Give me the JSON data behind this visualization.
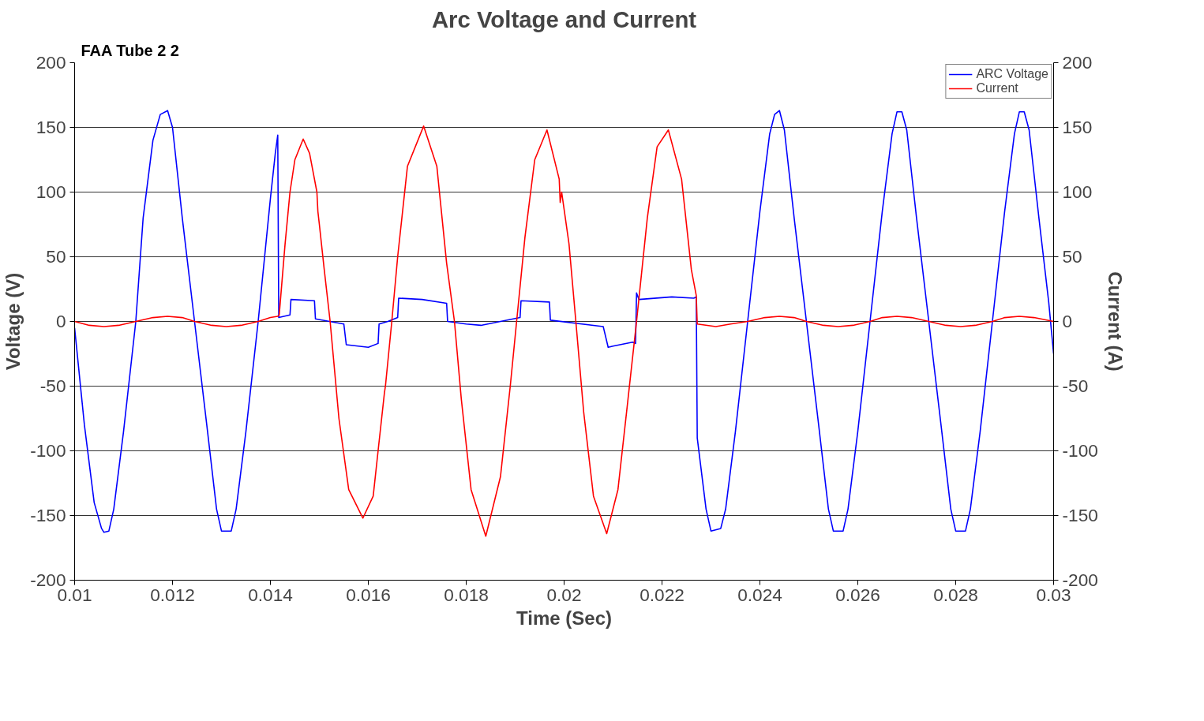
{
  "chart_data": {
    "type": "line",
    "title": "Arc Voltage and Current",
    "xlabel": "Time (Sec)",
    "ylabel": "Voltage (V)",
    "y2label": "Current (A)",
    "annotations": [
      "FAA Tube 2 2"
    ],
    "xlim": [
      0.01,
      0.03
    ],
    "xticks": [
      0.01,
      0.012,
      0.014,
      0.016,
      0.018,
      0.02,
      0.022,
      0.024,
      0.026,
      0.028,
      0.03
    ],
    "ylim": [
      -200,
      200
    ],
    "yticks": [
      -200,
      -150,
      -100,
      -50,
      0,
      50,
      100,
      150,
      200
    ],
    "y2lim": [
      -200,
      200
    ],
    "y2ticks": [
      -200,
      -150,
      -100,
      -50,
      0,
      50,
      100,
      150,
      200
    ],
    "grid": "y",
    "legend": "top right",
    "marker": "none",
    "line_style": "solid",
    "series": [
      {
        "name": "ARC Voltage",
        "color": "#0000ff",
        "x": [
          0.01,
          0.0102,
          0.0104,
          0.01055,
          0.0106,
          0.0107,
          0.0108,
          0.011,
          0.01125,
          0.0114,
          0.0116,
          0.01175,
          0.0119,
          0.012,
          0.0122,
          0.01245,
          0.0127,
          0.0129,
          0.013,
          0.0132,
          0.0133,
          0.0135,
          0.01375,
          0.014,
          0.0141,
          0.01415,
          0.01417,
          0.0144,
          0.01442,
          0.0149,
          0.01492,
          0.0155,
          0.01555,
          0.016,
          0.0162,
          0.01622,
          0.0164,
          0.0166,
          0.01662,
          0.0171,
          0.0176,
          0.01762,
          0.018,
          0.0183,
          0.0187,
          0.0191,
          0.01912,
          0.0197,
          0.01972,
          0.0208,
          0.0209,
          0.021,
          0.0214,
          0.02146,
          0.02148,
          0.02153,
          0.0222,
          0.02265,
          0.0227,
          0.02272,
          0.0229,
          0.023,
          0.0232,
          0.0233,
          0.0235,
          0.02375,
          0.024,
          0.0242,
          0.0243,
          0.0244,
          0.0245,
          0.0247,
          0.02495,
          0.0252,
          0.0254,
          0.0255,
          0.0257,
          0.0258,
          0.026,
          0.02625,
          0.0265,
          0.0267,
          0.0268,
          0.0269,
          0.027,
          0.0272,
          0.02745,
          0.0277,
          0.0279,
          0.028,
          0.0282,
          0.0283,
          0.0285,
          0.02875,
          0.029,
          0.0292,
          0.0293,
          0.0294,
          0.0295,
          0.0297,
          0.0299,
          0.03
        ],
        "values": [
          -5,
          -80,
          -140,
          -160,
          -163,
          -162,
          -145,
          -85,
          0,
          80,
          140,
          160,
          163,
          150,
          80,
          0,
          -80,
          -145,
          -162,
          -162,
          -145,
          -85,
          0,
          95,
          130,
          144,
          3,
          5,
          17,
          16,
          2,
          -2,
          -18,
          -20,
          -17,
          -2,
          0,
          3,
          18,
          17,
          14,
          0,
          -2,
          -3,
          0,
          3,
          16,
          15,
          1,
          -4,
          -20,
          -19,
          -16,
          -17,
          22,
          17,
          19,
          18,
          19,
          -90,
          -145,
          -162,
          -160,
          -145,
          -85,
          0,
          85,
          145,
          160,
          163,
          148,
          80,
          0,
          -80,
          -145,
          -162,
          -162,
          -145,
          -85,
          0,
          85,
          145,
          162,
          162,
          148,
          80,
          0,
          -80,
          -145,
          -162,
          -162,
          -145,
          -85,
          0,
          85,
          145,
          162,
          162,
          148,
          80,
          15,
          -25
        ]
      },
      {
        "name": "Current",
        "color": "#ff0000",
        "axis": "y2",
        "x": [
          0.01,
          0.0103,
          0.0106,
          0.0109,
          0.01125,
          0.0116,
          0.0119,
          0.0122,
          0.01245,
          0.0128,
          0.0131,
          0.0134,
          0.01375,
          0.014,
          0.01415,
          0.01418,
          0.0143,
          0.0144,
          0.0145,
          0.01467,
          0.0148,
          0.01495,
          0.01497,
          0.015,
          0.0151,
          0.01522,
          0.0154,
          0.0156,
          0.01589,
          0.0161,
          0.0162,
          0.01633,
          0.01635,
          0.01648,
          0.0166,
          0.0168,
          0.01713,
          0.0174,
          0.0176,
          0.01776,
          0.0179,
          0.0181,
          0.0184,
          0.0187,
          0.0189,
          0.01903,
          0.0192,
          0.0194,
          0.01965,
          0.0199,
          0.01992,
          0.01995,
          0.0201,
          0.02024,
          0.0204,
          0.0206,
          0.02087,
          0.0211,
          0.0213,
          0.02132,
          0.02148,
          0.0217,
          0.0219,
          0.02213,
          0.0224,
          0.0226,
          0.0227,
          0.02272,
          0.0231,
          0.0234,
          0.02375,
          0.0241,
          0.0244,
          0.0247,
          0.02495,
          0.0253,
          0.0256,
          0.0259,
          0.02625,
          0.0265,
          0.0268,
          0.0271,
          0.02745,
          0.0278,
          0.0281,
          0.0284,
          0.02875,
          0.029,
          0.0293,
          0.0296,
          0.03
        ],
        "values": [
          0,
          -3,
          -4,
          -3,
          0,
          3,
          4,
          3,
          0,
          -3,
          -4,
          -3,
          0,
          3,
          4,
          5,
          60,
          100,
          125,
          141,
          130,
          100,
          85,
          75,
          40,
          0,
          -75,
          -130,
          -152,
          -135,
          -100,
          -55,
          -50,
          0,
          50,
          120,
          151,
          120,
          45,
          0,
          -60,
          -130,
          -166,
          -120,
          -50,
          0,
          65,
          125,
          148,
          110,
          92,
          100,
          60,
          0,
          -70,
          -135,
          -164,
          -130,
          -62,
          -55,
          0,
          80,
          135,
          148,
          110,
          40,
          20,
          -2,
          -4,
          -2,
          0,
          3,
          4,
          3,
          0,
          -3,
          -4,
          -3,
          0,
          3,
          4,
          3,
          0,
          -3,
          -4,
          -3,
          0,
          3,
          4,
          3,
          0
        ]
      }
    ]
  }
}
